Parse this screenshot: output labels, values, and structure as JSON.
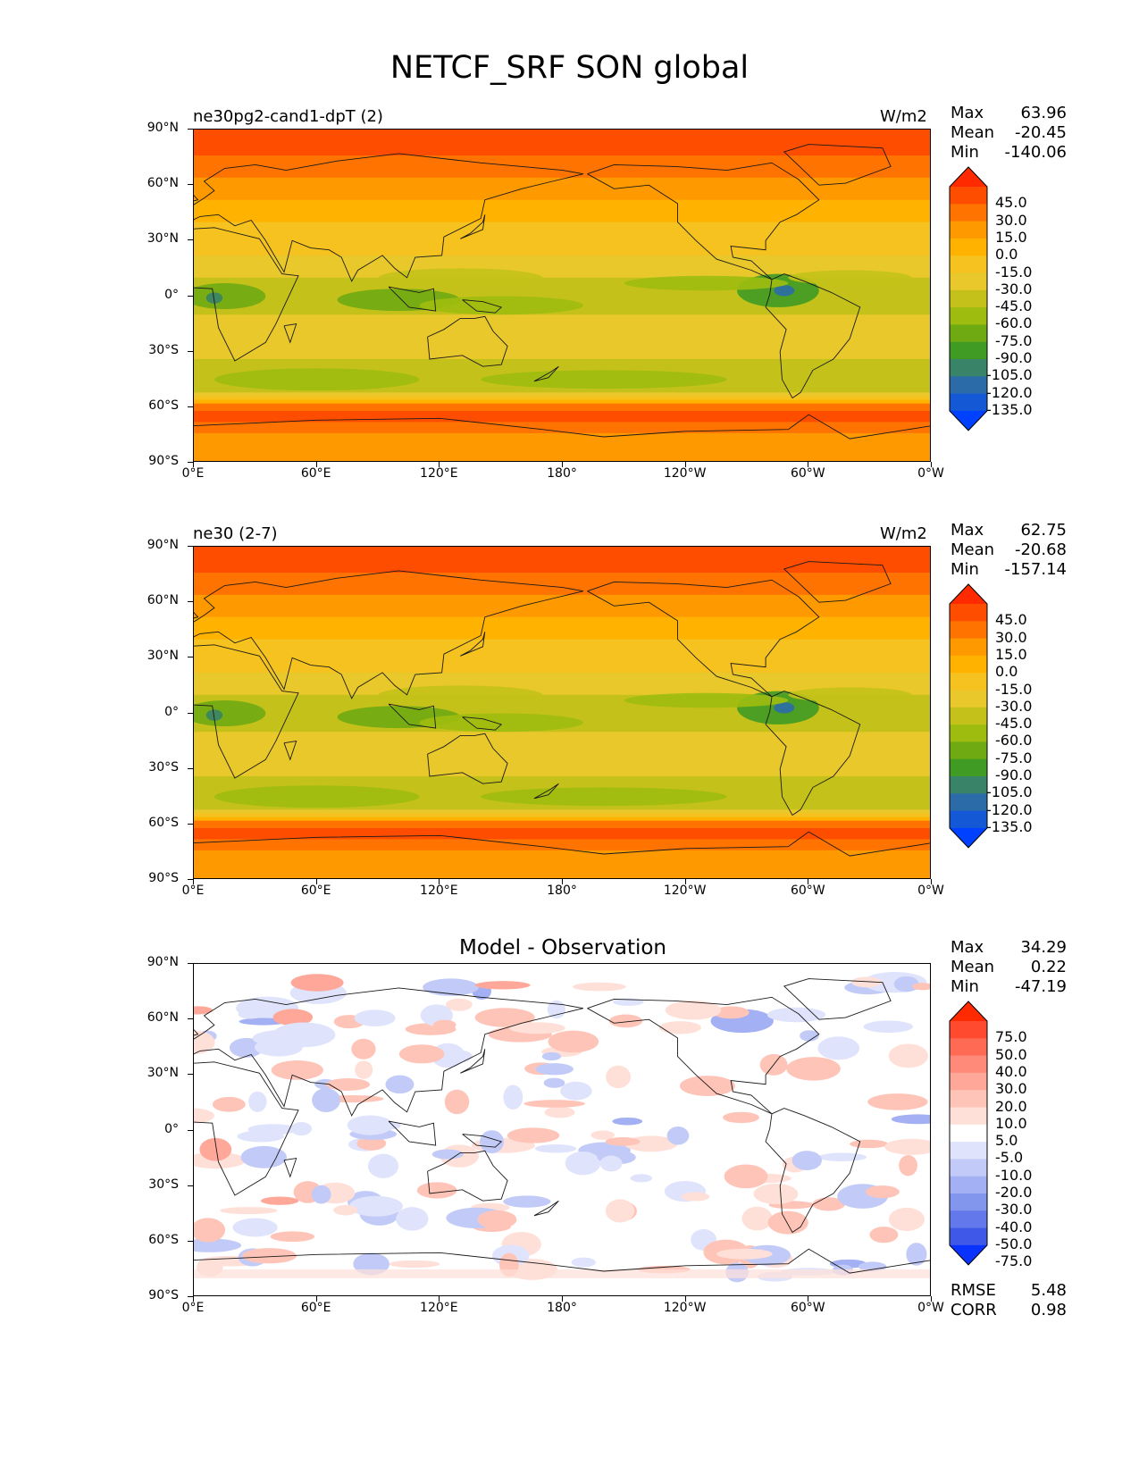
{
  "figure_title": "NETCF_SRF SON global",
  "panels": [
    {
      "left_title": "ne30pg2-cand1-dpT (2)",
      "right_title": "W/m2",
      "center_title": "",
      "stats": [
        {
          "label": "Max",
          "value": "63.96"
        },
        {
          "label": "Mean",
          "value": "-20.45"
        },
        {
          "label": "Min",
          "value": "-140.06"
        }
      ],
      "bottom_stats": []
    },
    {
      "left_title": "ne30 (2-7)",
      "right_title": "W/m2",
      "center_title": "",
      "stats": [
        {
          "label": "Max",
          "value": "62.75"
        },
        {
          "label": "Mean",
          "value": "-20.68"
        },
        {
          "label": "Min",
          "value": "-157.14"
        }
      ],
      "bottom_stats": []
    },
    {
      "left_title": "",
      "right_title": "",
      "center_title": "Model - Observation",
      "stats": [
        {
          "label": "Max",
          "value": "34.29"
        },
        {
          "label": "Mean",
          "value": "0.22"
        },
        {
          "label": "Min",
          "value": "-47.19"
        }
      ],
      "bottom_stats": [
        {
          "label": "RMSE",
          "value": "5.48"
        },
        {
          "label": "CORR",
          "value": "0.98"
        }
      ]
    }
  ],
  "axes": {
    "y_ticks": [
      "90°N",
      "60°N",
      "30°N",
      "0°",
      "30°S",
      "60°S",
      "90°S"
    ],
    "x_ticks": [
      "0°E",
      "60°E",
      "120°E",
      "180°",
      "120°W",
      "60°W",
      "0°W"
    ]
  },
  "chart_data": [
    {
      "type": "heatmap",
      "title": "ne30pg2-cand1-dpT (2)",
      "units": "W/m2",
      "colorbar_levels": [
        45.0,
        30.0,
        15.0,
        0.0,
        -15.0,
        -30.0,
        -45.0,
        -60.0,
        -75.0,
        -90.0,
        -105.0,
        -120.0,
        -135.0
      ],
      "colorbar_colors": [
        "#ff2a00",
        "#ff4d00",
        "#ff7300",
        "#ff9900",
        "#ffb300",
        "#f5c21f",
        "#e8c82a",
        "#c4c21a",
        "#9ebc0f",
        "#6faa12",
        "#3f9b24",
        "#398468",
        "#2b6ca8",
        "#1458d6",
        "#0040ff"
      ],
      "zonal_profile": {
        "lat": [
          90,
          75,
          60,
          45,
          30,
          15,
          5,
          0,
          -5,
          -15,
          -30,
          -40,
          -50,
          -60,
          -65,
          -75,
          -90
        ],
        "value": [
          45,
          30,
          10,
          -10,
          -25,
          -35,
          -55,
          -60,
          -50,
          -40,
          -40,
          -55,
          -60,
          25,
          40,
          15,
          5
        ]
      },
      "stats": {
        "Max": 63.96,
        "Mean": -20.45,
        "Min": -140.06
      }
    },
    {
      "type": "heatmap",
      "title": "ne30 (2-7)",
      "units": "W/m2",
      "colorbar_levels": [
        45.0,
        30.0,
        15.0,
        0.0,
        -15.0,
        -30.0,
        -45.0,
        -60.0,
        -75.0,
        -90.0,
        -105.0,
        -120.0,
        -135.0
      ],
      "colorbar_colors": [
        "#ff2a00",
        "#ff4d00",
        "#ff7300",
        "#ff9900",
        "#ffb300",
        "#f5c21f",
        "#e8c82a",
        "#c4c21a",
        "#9ebc0f",
        "#6faa12",
        "#3f9b24",
        "#398468",
        "#2b6ca8",
        "#1458d6",
        "#0040ff"
      ],
      "zonal_profile": {
        "lat": [
          90,
          75,
          60,
          45,
          30,
          15,
          5,
          0,
          -5,
          -15,
          -30,
          -40,
          -50,
          -60,
          -65,
          -75,
          -90
        ],
        "value": [
          45,
          30,
          10,
          -10,
          -25,
          -35,
          -55,
          -60,
          -50,
          -40,
          -40,
          -55,
          -60,
          25,
          40,
          15,
          5
        ]
      },
      "stats": {
        "Max": 62.75,
        "Mean": -20.68,
        "Min": -157.14
      }
    },
    {
      "type": "heatmap",
      "title": "Model - Observation",
      "colorbar_levels": [
        75.0,
        50.0,
        40.0,
        30.0,
        20.0,
        10.0,
        5.0,
        -5.0,
        -10.0,
        -20.0,
        -30.0,
        -40.0,
        -50.0,
        -75.0
      ],
      "colorbar_colors": [
        "#ff2a00",
        "#ff4a30",
        "#ff6a55",
        "#ff8a7a",
        "#ffa89a",
        "#ffc4b8",
        "#ffe0d8",
        "#ffffff",
        "#dfe3fb",
        "#c2cbf7",
        "#a3b0f3",
        "#8396ee",
        "#6378ea",
        "#3f58e8",
        "#0a32ff"
      ],
      "stats": {
        "Max": 34.29,
        "Mean": 0.22,
        "Min": -47.19,
        "RMSE": 5.48,
        "CORR": 0.98
      }
    }
  ]
}
